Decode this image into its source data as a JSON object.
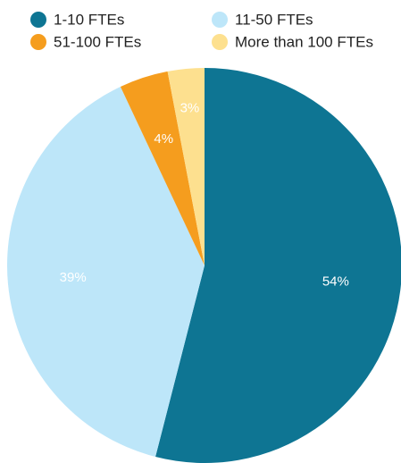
{
  "chart_data": {
    "type": "pie",
    "categories": [
      "1-10 FTEs",
      "11-50 FTEs",
      "51-100 FTEs",
      "More than 100 FTEs"
    ],
    "values": [
      54,
      39,
      4,
      3
    ],
    "value_labels": [
      "54%",
      "39%",
      "4%",
      "3%"
    ],
    "colors": [
      "#0e7593",
      "#bde6f9",
      "#f59d1e",
      "#fde08f"
    ],
    "legend": "top"
  }
}
